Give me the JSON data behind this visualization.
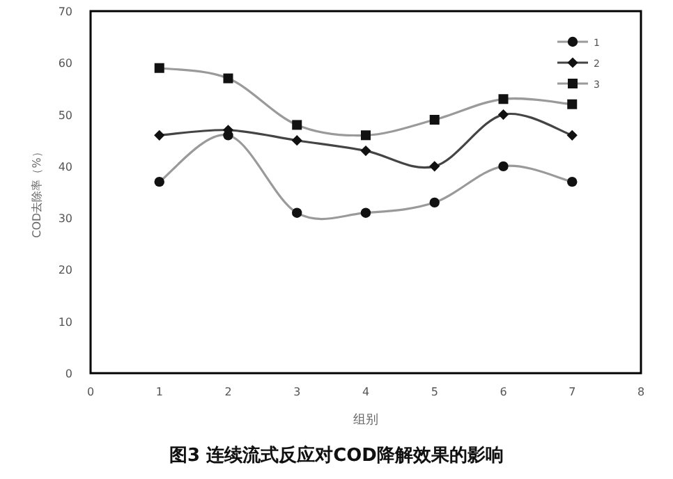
{
  "chart_data": {
    "type": "line",
    "title": "图3 连续流式反应对COD降解效果的影响",
    "xlabel": "组别",
    "ylabel": "COD去除率（%）",
    "x": [
      1,
      2,
      3,
      4,
      5,
      6,
      7
    ],
    "series": [
      {
        "name": "1",
        "color": "#9a9a9a",
        "marker": "circle",
        "values": [
          37,
          46,
          31,
          31,
          33,
          40,
          37
        ]
      },
      {
        "name": "2",
        "color": "#444444",
        "marker": "diamond",
        "values": [
          46,
          47,
          45,
          43,
          40,
          50,
          46
        ]
      },
      {
        "name": "3",
        "color": "#9a9a9a",
        "marker": "square",
        "values": [
          59,
          57,
          48,
          46,
          49,
          53,
          52
        ]
      }
    ],
    "xlim": [
      0,
      8
    ],
    "xticks": [
      0,
      1,
      2,
      3,
      4,
      5,
      6,
      7,
      8
    ],
    "ylim": [
      0,
      70
    ],
    "yticks": [
      0,
      10,
      20,
      30,
      40,
      50,
      60,
      70
    ],
    "grid": false,
    "legend": "top right",
    "line_style": "solid"
  }
}
